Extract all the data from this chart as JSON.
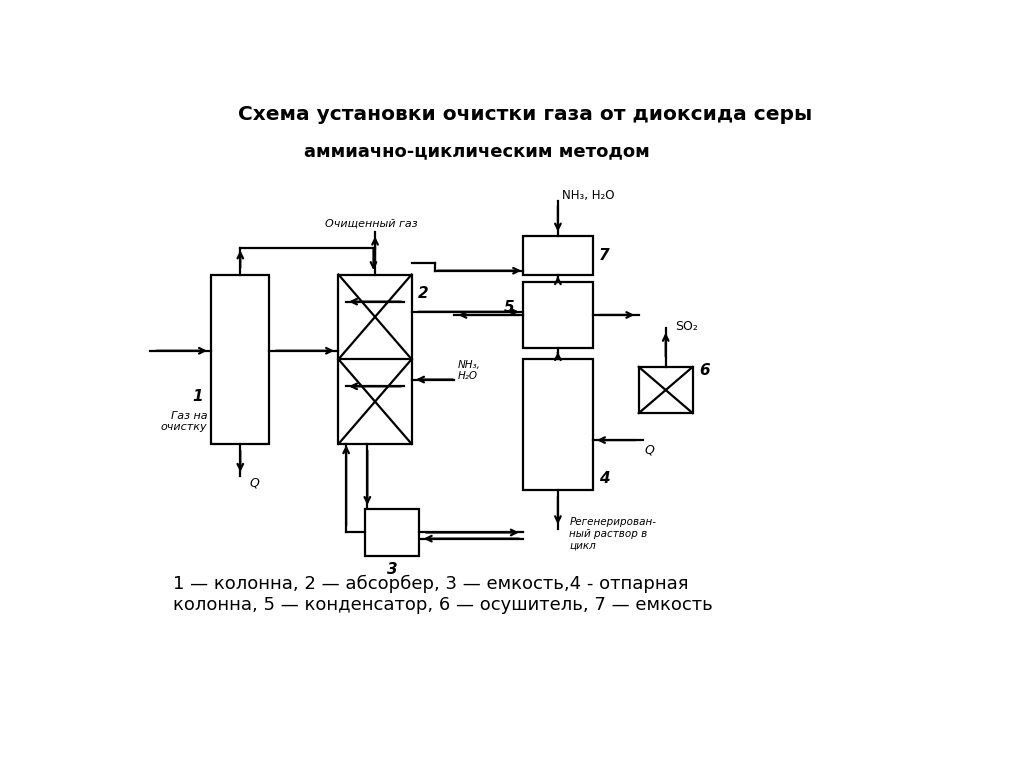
{
  "title_line1": "Схема установки очистки газа от диоксида серы",
  "title_line2": "аммиачно-циклическим методом",
  "legend_text": "1 — колонна, 2 — абсорбер, 3 — емкость,4 - отпарная\nколонна, 5 — конденсатор, 6 — осушитель, 7 — емкость",
  "bg_color": "#ffffff",
  "fg_color": "#000000",
  "lw": 1.6,
  "b1": [
    1.05,
    3.1,
    0.75,
    2.2
  ],
  "b2": [
    2.7,
    3.1,
    0.95,
    2.2
  ],
  "b3": [
    3.05,
    1.65,
    0.7,
    0.6
  ],
  "b4": [
    5.1,
    2.5,
    0.9,
    1.7
  ],
  "b5": [
    5.1,
    4.35,
    0.9,
    0.85
  ],
  "b6": [
    6.6,
    3.5,
    0.7,
    0.6
  ],
  "b7": [
    5.1,
    5.3,
    0.9,
    0.5
  ]
}
